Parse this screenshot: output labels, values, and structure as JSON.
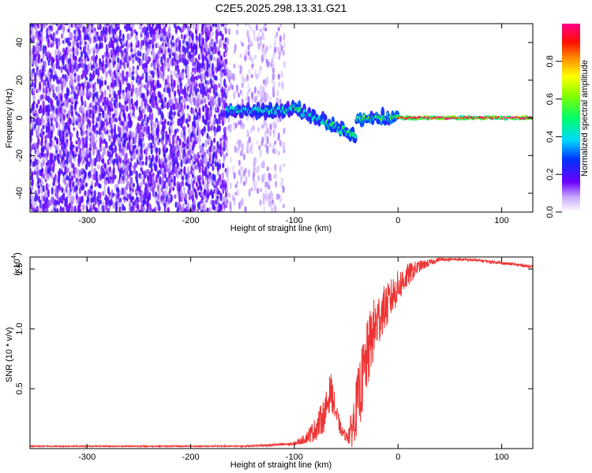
{
  "page_title": "C2E5.2025.298.13.31.G21",
  "chart_data": [
    {
      "type": "heatmap",
      "title": "C2E5.2025.298.13.31.G21",
      "xlabel": "Height of straight line (km)",
      "ylabel": "Frequency (Hz)",
      "xlim": [
        -355,
        130
      ],
      "ylim": [
        -50,
        50
      ],
      "x_ticks": [
        -300,
        -200,
        -100,
        0,
        100
      ],
      "x_tick_labels": [
        "-300",
        "-200",
        "-100",
        "0",
        "100"
      ],
      "y_ticks": [
        -40,
        -20,
        0,
        20,
        40
      ],
      "y_tick_labels": [
        "-40",
        "-20",
        "0",
        "20",
        "40"
      ],
      "colorbar": {
        "label": "Normalized spectral amplitude",
        "range": [
          0,
          1
        ],
        "ticks": [
          0.0,
          0.2,
          0.4,
          0.6,
          0.8
        ],
        "tick_labels": [
          "0.0",
          "0.2",
          "0.4",
          "0.6",
          "0.8"
        ],
        "colormap": "rainbow (violet-blue-cyan-green-yellow-red-magenta)"
      },
      "regions": [
        {
          "x_range": [
            -355,
            -165
          ],
          "freq_range": [
            -50,
            50
          ],
          "amplitude": 0.1,
          "description": "broadband noise"
        },
        {
          "x_range": [
            -165,
            -110
          ],
          "freq_range": [
            -50,
            50
          ],
          "amplitude": 0.05,
          "description": "sparse broadband noise"
        },
        {
          "x_range": [
            -165,
            -100
          ],
          "freq_center": 4,
          "amplitude": 0.4
        },
        {
          "x_range": [
            -100,
            -40
          ],
          "freq_center_start": 5,
          "freq_center_end": -10,
          "amplitude": 0.45
        },
        {
          "x_range": [
            -40,
            0
          ],
          "freq_center": 0,
          "amplitude": 0.5
        },
        {
          "x_range": [
            0,
            130
          ],
          "freq_center": 0,
          "amplitude": 0.9,
          "description": "strong steady tone"
        }
      ],
      "grid": false
    },
    {
      "type": "line",
      "xlabel": "Height of straight line (km)",
      "ylabel": "SNR (10 * v/v)",
      "y_scale_label": "(x10",
      "y_scale_exponent": "4",
      "xlim": [
        -355,
        130
      ],
      "ylim": [
        0,
        1.6
      ],
      "x_ticks": [
        -300,
        -200,
        -100,
        0,
        100
      ],
      "x_tick_labels": [
        "-300",
        "-200",
        "-100",
        "0",
        "100"
      ],
      "y_ticks": [
        0.5,
        1.0,
        1.5
      ],
      "y_tick_labels": [
        "0.5",
        "1.0",
        "1.5"
      ],
      "series": [
        {
          "color": "#ee3333",
          "x": [
            -355,
            -300,
            -250,
            -200,
            -150,
            -120,
            -100,
            -90,
            -80,
            -70,
            -65,
            -60,
            -55,
            -50,
            -45,
            -40,
            -35,
            -30,
            -25,
            -20,
            -15,
            -10,
            -5,
            0,
            10,
            20,
            30,
            40,
            50,
            60,
            80,
            100,
            120,
            130
          ],
          "y": [
            0.02,
            0.02,
            0.02,
            0.02,
            0.02,
            0.03,
            0.04,
            0.08,
            0.16,
            0.3,
            0.5,
            0.3,
            0.15,
            0.1,
            0.15,
            0.35,
            0.55,
            0.75,
            0.95,
            1.05,
            1.15,
            1.2,
            1.28,
            1.35,
            1.45,
            1.52,
            1.55,
            1.58,
            1.58,
            1.58,
            1.57,
            1.55,
            1.53,
            1.52
          ],
          "noise": [
            0.005,
            0.005,
            0.005,
            0.005,
            0.006,
            0.01,
            0.015,
            0.04,
            0.1,
            0.15,
            0.15,
            0.1,
            0.05,
            0.04,
            0.15,
            0.25,
            0.3,
            0.3,
            0.28,
            0.25,
            0.2,
            0.18,
            0.16,
            0.14,
            0.1,
            0.05,
            0.03,
            0.015,
            0.012,
            0.012,
            0.012,
            0.012,
            0.012,
            0.012
          ]
        }
      ],
      "grid": false
    }
  ]
}
